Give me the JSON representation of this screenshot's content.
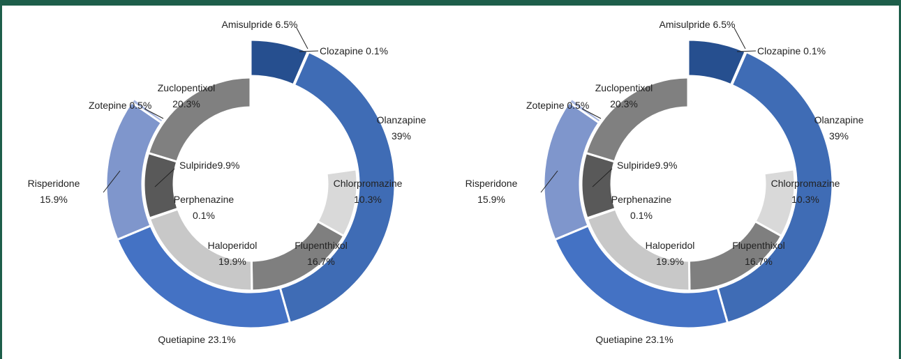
{
  "chart_data": [
    {
      "type": "donut",
      "outer": {
        "categories": [
          "Amisulpride",
          "Clozapine",
          "Olanzapine",
          "Quetiapine",
          "Risperidone",
          "Zotepine"
        ],
        "values": [
          6.5,
          0.1,
          39,
          23.1,
          15.9,
          0.5
        ],
        "value_labels": [
          "6.5%",
          "0.1%",
          "39%",
          "23.1%",
          "15.9%",
          "0.5%"
        ],
        "colors": [
          "#264f8f",
          "#2d5aa0",
          "#3f6cb5",
          "#4472c4",
          "#7f96cc",
          "#a9b8e0"
        ]
      },
      "inner": {
        "categories": [
          "Chlorpromazine",
          "Flupenthixol",
          "Haloperidol",
          "Perphenazine",
          "Sulpiride",
          "Zuclopentixol"
        ],
        "values": [
          10.3,
          16.7,
          19.9,
          0.1,
          9.9,
          20.3
        ],
        "value_labels": [
          "10.3%",
          "16.7%",
          "19.9%",
          "0.1%",
          "9.9%",
          "20.3%"
        ],
        "colors": [
          "#d9d9d9",
          "#7f7f7f",
          "#c8c8c8",
          "#bfbfbf",
          "#595959",
          "#808080"
        ]
      }
    },
    {
      "type": "donut",
      "outer": {
        "categories": [
          "Amisulpride",
          "Clozapine",
          "Olanzapine",
          "Quetiapine",
          "Risperidone",
          "Zotepine"
        ],
        "values": [
          6.5,
          0.1,
          39,
          23.1,
          15.9,
          0.5
        ],
        "value_labels": [
          "6.5%",
          "0.1%",
          "39%",
          "23.1%",
          "15.9%",
          "0.5%"
        ],
        "colors": [
          "#264f8f",
          "#2d5aa0",
          "#3f6cb5",
          "#4472c4",
          "#7f96cc",
          "#a9b8e0"
        ]
      },
      "inner": {
        "categories": [
          "Chlorpromazine",
          "Flupenthixol",
          "Haloperidol",
          "Perphenazine",
          "Sulpiride",
          "Zuclopentixol"
        ],
        "values": [
          10.3,
          16.7,
          19.9,
          0.1,
          9.9,
          20.3
        ],
        "value_labels": [
          "10.3%",
          "16.7%",
          "19.9%",
          "0.1%",
          "9.9%",
          "20.3%"
        ],
        "colors": [
          "#d9d9d9",
          "#7f7f7f",
          "#c8c8c8",
          "#bfbfbf",
          "#595959",
          "#808080"
        ]
      }
    }
  ]
}
